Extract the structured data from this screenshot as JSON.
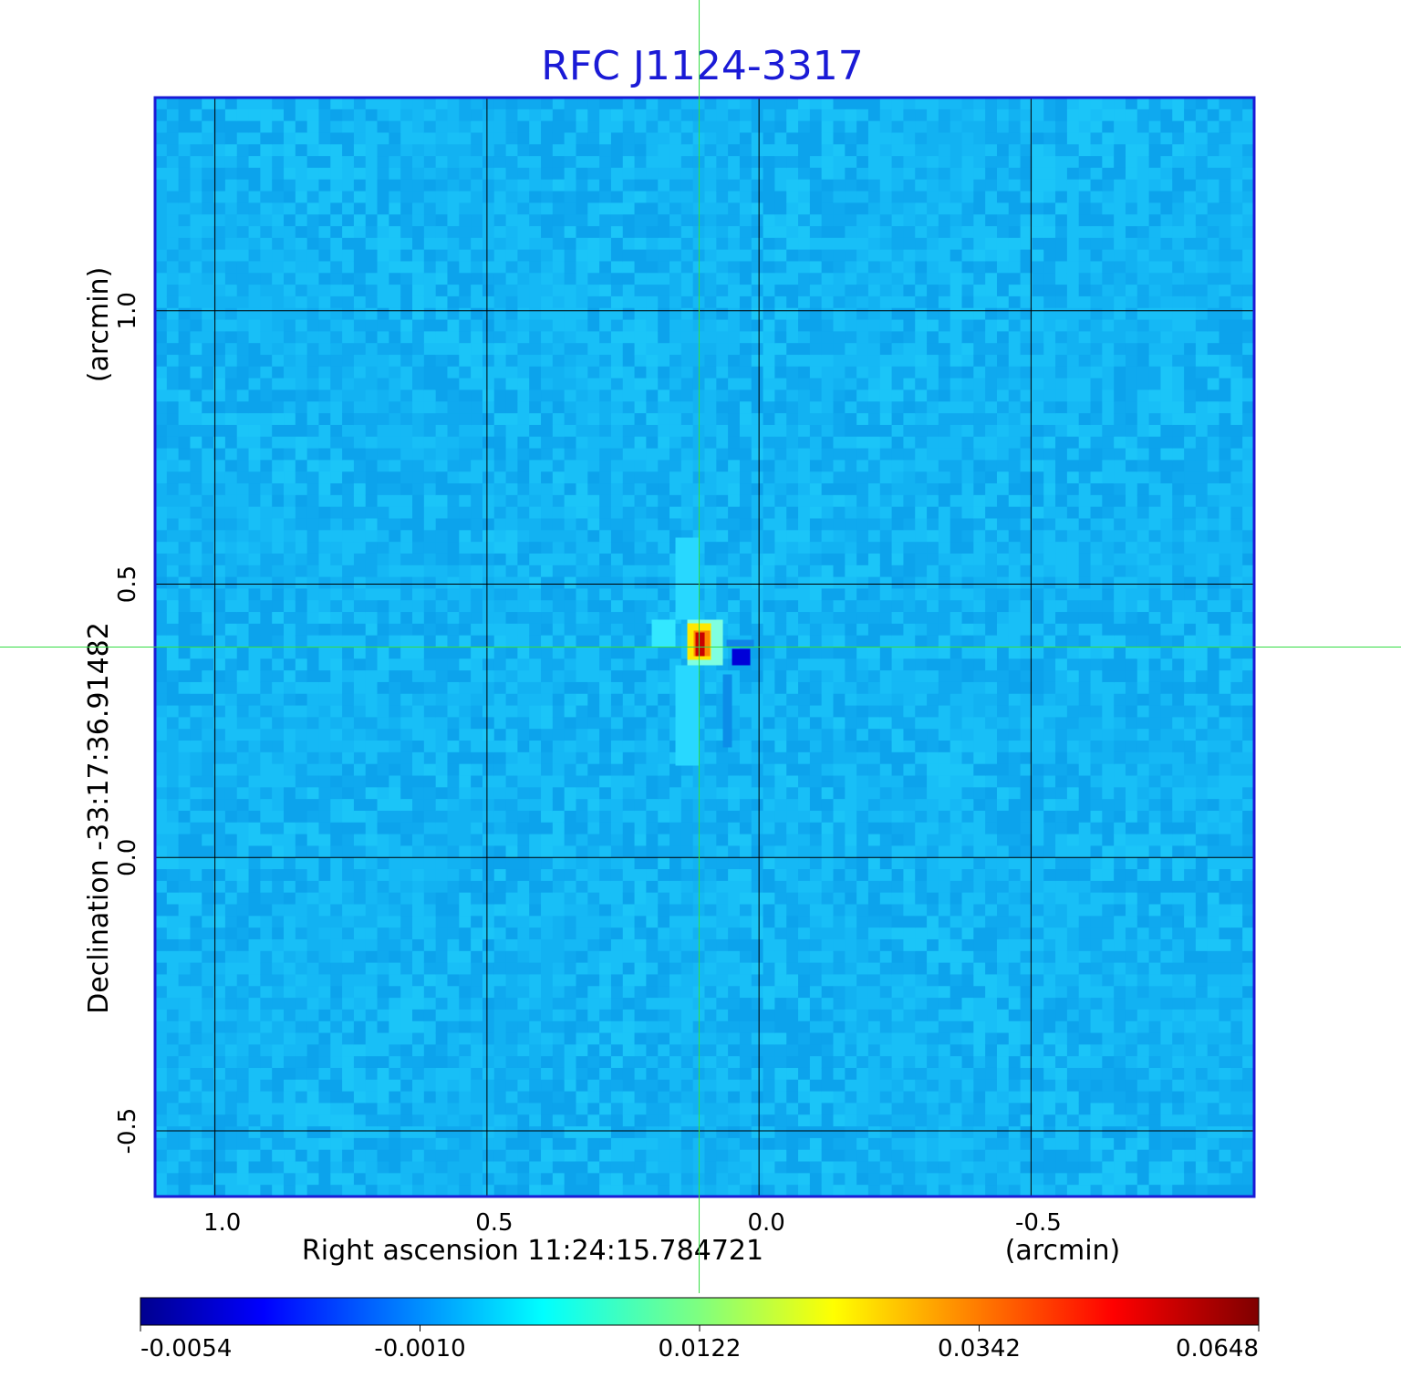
{
  "chart_data": {
    "type": "heatmap",
    "title": "RFC J1124-3317",
    "xlabel": "Right ascension  11:24:15.784721",
    "xunit": "(arcmin)",
    "ylabel": "Declination  -33:17:36.91482",
    "yunit": "(arcmin)",
    "x_ticks": [
      1.0,
      0.5,
      0.0,
      -0.5
    ],
    "x_tick_labels": [
      "1.0",
      "0.5",
      "0.0",
      "-0.5"
    ],
    "y_ticks": [
      1.0,
      0.5,
      0.0,
      -0.5
    ],
    "y_tick_labels": [
      "1.0",
      "0.5",
      "0.0",
      "-0.5"
    ],
    "xlim": [
      1.11,
      -0.91
    ],
    "ylim": [
      -0.62,
      1.39
    ],
    "grid": true,
    "crosshair": {
      "x": 0.11,
      "y": 0.385
    },
    "colorbar": {
      "range": [
        -0.0054,
        0.0648
      ],
      "tick_values": [
        -0.0054,
        -0.001,
        0.0122,
        0.0342,
        0.0648
      ],
      "tick_labels": [
        "-0.0054",
        "-0.0010",
        "0.0122",
        "0.0342",
        "0.0648"
      ],
      "colormap": "jet"
    },
    "background_level": -0.001,
    "features": [
      {
        "kind": "peak",
        "x": 0.11,
        "y": 0.39,
        "value": 0.0648
      },
      {
        "kind": "negative",
        "x": 0.04,
        "y": 0.36,
        "value": -0.0054
      }
    ]
  },
  "colors": {
    "title": "#1a1ad6",
    "frame": "#1a1ad6",
    "crosshair": "#33dd44",
    "grid": "#000000"
  }
}
